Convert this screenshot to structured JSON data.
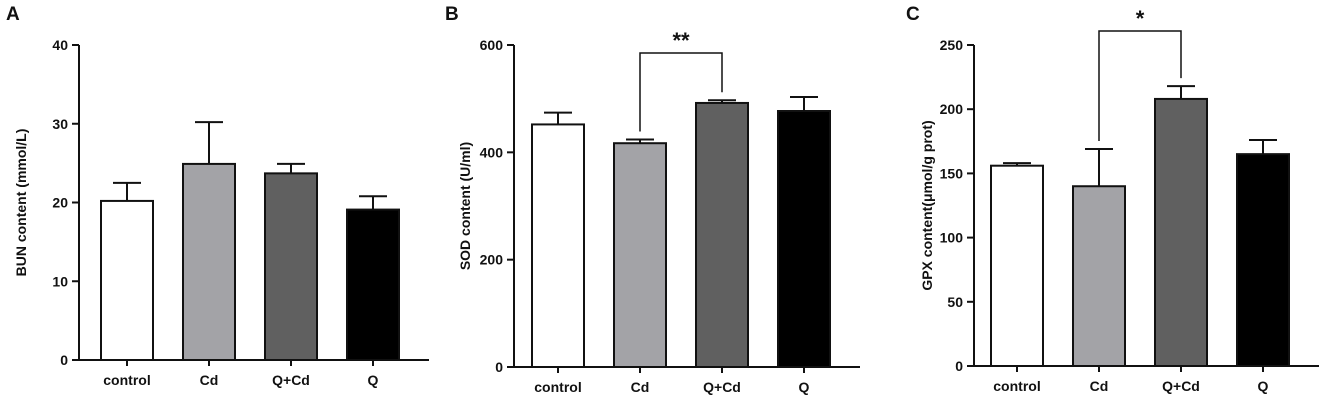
{
  "chart_data": [
    {
      "panel": "A",
      "type": "bar",
      "categories": [
        "control",
        "Cd",
        "Q+Cd",
        "Q"
      ],
      "values": [
        20.2,
        24.9,
        23.7,
        19.1
      ],
      "errors": [
        2.3,
        5.3,
        1.2,
        1.7
      ],
      "ylabel": "BUN content (mmol/L)",
      "ylim": [
        0,
        40
      ],
      "yticks": [
        0,
        10,
        20,
        30,
        40
      ],
      "bar_colors": [
        "#ffffff",
        "#a3a3a7",
        "#606060",
        "#000000"
      ],
      "significance": []
    },
    {
      "panel": "B",
      "type": "bar",
      "categories": [
        "control",
        "Cd",
        "Q+Cd",
        "Q"
      ],
      "values": [
        452,
        417,
        492,
        477
      ],
      "errors": [
        22,
        7,
        5,
        26
      ],
      "ylabel": "SOD content (U/ml)",
      "ylim": [
        0,
        600
      ],
      "yticks": [
        0,
        200,
        400,
        600
      ],
      "bar_colors": [
        "#ffffff",
        "#a3a3a7",
        "#606060",
        "#000000"
      ],
      "significance": [
        {
          "from": 1,
          "to": 2,
          "label": "**"
        }
      ]
    },
    {
      "panel": "C",
      "type": "bar",
      "categories": [
        "control",
        "Cd",
        "Q+Cd",
        "Q"
      ],
      "values": [
        156,
        140,
        208,
        165
      ],
      "errors": [
        2,
        29,
        10,
        11
      ],
      "ylabel": "GPX content(μmol/g prot)",
      "ylim": [
        0,
        250
      ],
      "yticks": [
        0,
        50,
        100,
        150,
        200,
        250
      ],
      "bar_colors": [
        "#ffffff",
        "#a3a3a7",
        "#606060",
        "#000000"
      ],
      "significance": [
        {
          "from": 1,
          "to": 2,
          "label": "*"
        }
      ]
    }
  ]
}
